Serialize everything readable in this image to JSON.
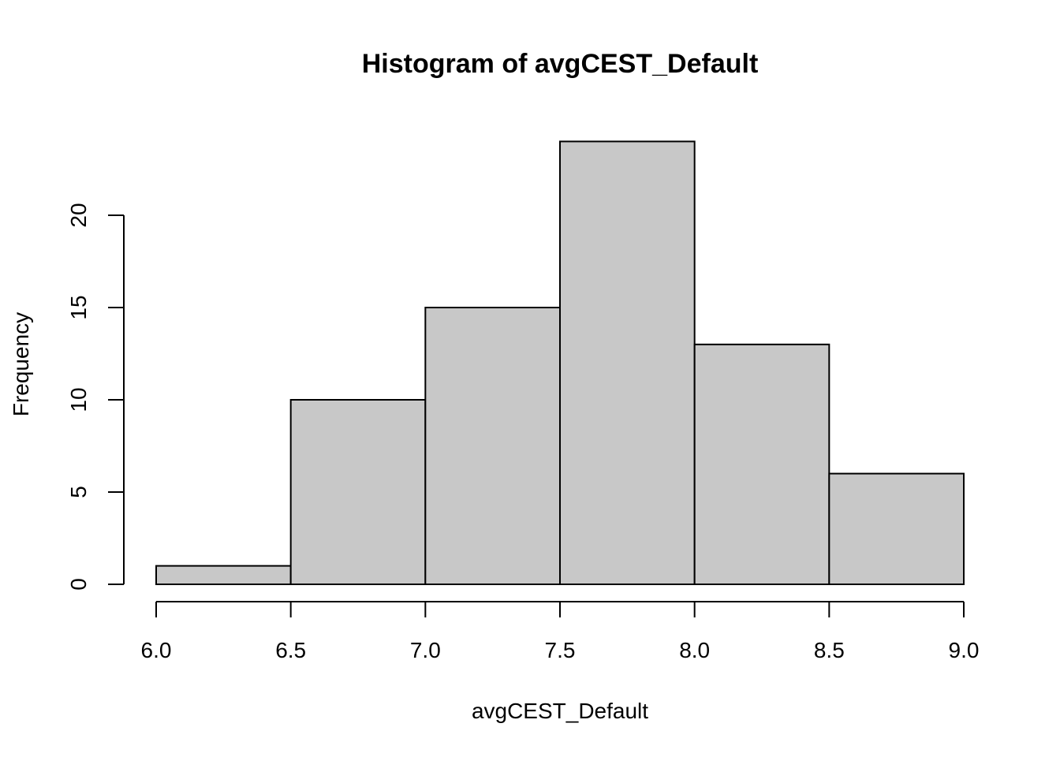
{
  "chart_data": {
    "type": "bar",
    "title": "Histogram of avgCEST_Default",
    "xlabel": "avgCEST_Default",
    "ylabel": "Frequency",
    "bins": [
      {
        "start": 6.0,
        "end": 6.5,
        "count": 1
      },
      {
        "start": 6.5,
        "end": 7.0,
        "count": 10
      },
      {
        "start": 7.0,
        "end": 7.5,
        "count": 15
      },
      {
        "start": 7.5,
        "end": 8.0,
        "count": 24
      },
      {
        "start": 8.0,
        "end": 8.5,
        "count": 13
      },
      {
        "start": 8.5,
        "end": 9.0,
        "count": 6
      }
    ],
    "xlim": [
      6.0,
      9.0
    ],
    "ylim": [
      0,
      24
    ],
    "x_ticks": [
      "6.0",
      "6.5",
      "7.0",
      "7.5",
      "8.0",
      "8.5",
      "9.0"
    ],
    "y_ticks": [
      "0",
      "5",
      "10",
      "15",
      "20"
    ],
    "bar_color": "#c8c8c8",
    "grid": false,
    "legend": "none"
  }
}
